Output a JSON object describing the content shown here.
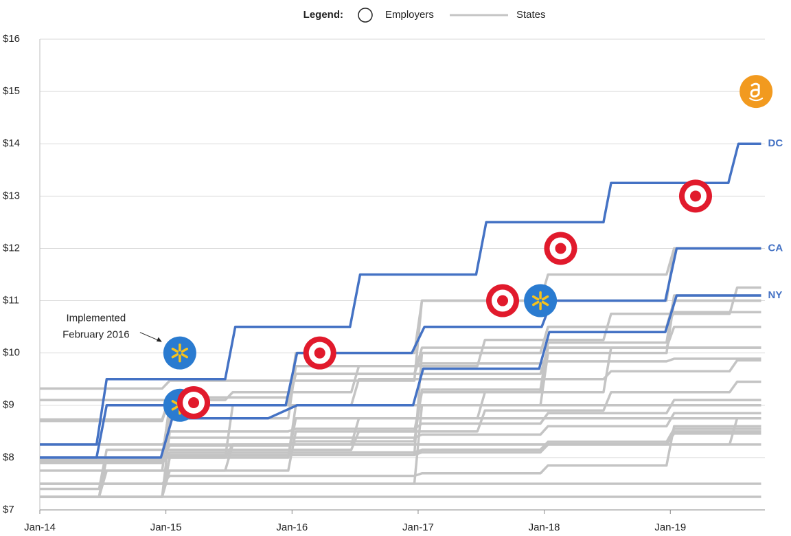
{
  "chart_data": {
    "type": "line",
    "legend": {
      "title": "Legend:",
      "employers": "Employers",
      "states": "States"
    },
    "xlim": [
      2014,
      2019.75
    ],
    "xticks": [
      {
        "value": 2014,
        "label": "Jan-14"
      },
      {
        "value": 2015,
        "label": "Jan-15"
      },
      {
        "value": 2016,
        "label": "Jan-16"
      },
      {
        "value": 2017,
        "label": "Jan-17"
      },
      {
        "value": 2018,
        "label": "Jan-18"
      },
      {
        "value": 2019,
        "label": "Jan-19"
      }
    ],
    "ylim": [
      7,
      16
    ],
    "yticks": [
      {
        "value": 7,
        "label": "$7"
      },
      {
        "value": 8,
        "label": "$8"
      },
      {
        "value": 9,
        "label": "$9"
      },
      {
        "value": 10,
        "label": "$10"
      },
      {
        "value": 11,
        "label": "$11"
      },
      {
        "value": 12,
        "label": "$12"
      },
      {
        "value": 13,
        "label": "$13"
      },
      {
        "value": 14,
        "label": "$14"
      },
      {
        "value": 15,
        "label": "$15"
      },
      {
        "value": 16,
        "label": "$16"
      }
    ],
    "grid": true,
    "state_color": "#c4c4c4",
    "series": [
      {
        "color": "#c4c4c4",
        "x": [
          2014,
          2019.72
        ],
        "values": [
          7.25,
          7.25
        ]
      },
      {
        "color": "#c4c4c4",
        "x": [
          2014,
          2019.72
        ],
        "values": [
          7.5,
          7.5
        ]
      },
      {
        "color": "#c4c4c4",
        "x": [
          2014,
          2019.72
        ],
        "values": [
          8.25,
          8.25
        ]
      },
      {
        "color": "#c4c4c4",
        "x": [
          2014,
          2014.97,
          2015.03,
          2015.97,
          2016.03,
          2016.97,
          2017.03,
          2017.97,
          2018.03,
          2018.97,
          2019.03,
          2019.72
        ],
        "values": [
          8.73,
          8.73,
          9.15,
          9.15,
          9.6,
          9.6,
          10.0,
          10.0,
          10.5,
          10.5,
          10.78,
          10.78
        ]
      },
      {
        "color": "#c4c4c4",
        "x": [
          2014,
          2014.97,
          2015.03,
          2015.97,
          2016.03,
          2016.97,
          2017.03,
          2017.97,
          2018.03,
          2018.97,
          2019.03,
          2019.72
        ],
        "values": [
          8.7,
          8.7,
          9.15,
          9.15,
          9.6,
          9.6,
          10.1,
          10.1,
          10.1,
          10.1,
          10.1,
          10.1
        ]
      },
      {
        "color": "#c4c4c4",
        "x": [
          2014,
          2014.97,
          2015.03,
          2015.97,
          2016.03,
          2016.97,
          2017.03,
          2017.97,
          2018.03,
          2018.97,
          2019.03,
          2019.72
        ],
        "values": [
          7.75,
          7.75,
          8.75,
          8.75,
          9.75,
          9.75,
          9.8,
          9.8,
          9.84,
          9.84,
          9.89,
          9.89
        ]
      },
      {
        "color": "#c4c4c4",
        "x": [
          2014,
          2014.97,
          2015.03,
          2015.97,
          2016.03,
          2016.97,
          2017.03,
          2017.97,
          2018.03,
          2018.97,
          2019.03,
          2019.72
        ],
        "values": [
          7.9,
          7.9,
          8.05,
          8.05,
          8.05,
          8.05,
          10.0,
          10.0,
          10.5,
          10.5,
          11.0,
          11.0
        ]
      },
      {
        "color": "#c4c4c4",
        "x": [
          2014,
          2014.97,
          2015.03,
          2015.97,
          2016.03,
          2016.97,
          2017.03,
          2017.97,
          2018.03,
          2018.97,
          2019.03,
          2019.72
        ],
        "values": [
          8.0,
          8.0,
          8.23,
          8.23,
          8.31,
          8.31,
          9.3,
          9.3,
          10.2,
          10.2,
          11.1,
          11.1
        ]
      },
      {
        "color": "#c4c4c4",
        "x": [
          2014,
          2014.97,
          2015.03,
          2015.97,
          2016.03,
          2016.97,
          2017.03,
          2017.97,
          2018.03,
          2018.97,
          2019.03,
          2019.72
        ],
        "values": [
          7.5,
          7.5,
          7.5,
          7.5,
          7.5,
          7.5,
          9.0,
          9.0,
          10.0,
          10.0,
          11.0,
          11.0
        ]
      },
      {
        "color": "#c4c4c4",
        "x": [
          2014,
          2014.97,
          2015.03,
          2015.97,
          2016.03,
          2016.97,
          2017.03,
          2017.97,
          2018.03,
          2018.97,
          2019.03,
          2019.72
        ],
        "values": [
          8.0,
          8.0,
          9.0,
          9.0,
          9.6,
          9.6,
          9.6,
          9.6,
          10.1,
          10.1,
          10.5,
          10.5
        ]
      },
      {
        "color": "#c4c4c4",
        "x": [
          2014,
          2014.97,
          2015.03,
          2015.97,
          2016.03,
          2016.97,
          2017.03,
          2017.97,
          2018.03,
          2018.97,
          2019.03,
          2019.72
        ],
        "values": [
          7.25,
          7.25,
          7.75,
          7.75,
          8.5,
          8.5,
          9.25,
          9.25,
          10.1,
          10.1,
          10.1,
          10.1
        ]
      },
      {
        "color": "#c4c4c4",
        "x": [
          2014,
          2014.97,
          2015.03,
          2015.97,
          2016.03,
          2016.97,
          2017.03,
          2017.97,
          2018.03,
          2018.97,
          2019.03,
          2019.72
        ],
        "values": [
          7.25,
          7.25,
          8.0,
          8.0,
          9.0,
          9.0,
          9.0,
          9.0,
          9.0,
          9.0,
          9.0,
          9.0
        ]
      },
      {
        "color": "#c4c4c4",
        "x": [
          2014,
          2014.97,
          2015.03,
          2015.97,
          2016.03,
          2016.97,
          2017.03,
          2017.97,
          2018.03,
          2018.97,
          2019.03,
          2019.72
        ],
        "values": [
          7.25,
          7.25,
          8.5,
          8.5,
          8.55,
          8.55,
          8.65,
          8.65,
          8.85,
          8.85,
          9.1,
          9.1
        ]
      },
      {
        "color": "#c4c4c4",
        "x": [
          2014,
          2014.97,
          2015.03,
          2015.97,
          2016.03,
          2016.97,
          2017.03,
          2017.97,
          2018.03,
          2018.97,
          2019.03,
          2019.72
        ],
        "values": [
          7.25,
          7.25,
          8.0,
          8.0,
          8.75,
          8.75,
          8.75,
          8.75,
          8.75,
          8.75,
          8.75,
          8.75
        ]
      },
      {
        "color": "#c4c4c4",
        "x": [
          2014,
          2014.97,
          2015.03,
          2015.97,
          2016.03,
          2016.97,
          2017.03,
          2017.97,
          2018.03,
          2018.97,
          2019.03,
          2019.72
        ],
        "values": [
          7.95,
          7.95,
          8.1,
          8.1,
          8.1,
          8.1,
          8.15,
          8.15,
          8.3,
          8.3,
          8.55,
          8.55
        ]
      },
      {
        "color": "#c4c4c4",
        "x": [
          2014,
          2014.97,
          2015.03,
          2015.97,
          2016.03,
          2016.97,
          2017.03,
          2017.97,
          2018.03,
          2018.97,
          2019.03,
          2019.72
        ],
        "values": [
          7.93,
          7.93,
          8.05,
          8.05,
          8.05,
          8.05,
          8.1,
          8.1,
          8.25,
          8.25,
          8.46,
          8.46
        ]
      },
      {
        "color": "#c4c4c4",
        "x": [
          2014,
          2014.97,
          2015.03,
          2015.97,
          2016.03,
          2016.97,
          2017.03,
          2017.97,
          2018.03,
          2018.97,
          2019.03,
          2019.72
        ],
        "values": [
          7.5,
          7.5,
          7.65,
          7.65,
          7.65,
          7.65,
          7.7,
          7.7,
          7.85,
          7.85,
          8.6,
          8.6
        ]
      },
      {
        "color": "#c4c4c4",
        "x": [
          2014,
          2014.97,
          2015.03,
          2015.97,
          2016.03,
          2016.97,
          2017.03,
          2017.97,
          2018.03,
          2018.97,
          2019.03,
          2019.72
        ],
        "values": [
          7.9,
          7.9,
          8.05,
          8.05,
          8.05,
          8.05,
          8.15,
          8.15,
          8.3,
          8.3,
          8.5,
          8.5
        ]
      },
      {
        "color": "#c4c4c4",
        "x": [
          2014,
          2014.97,
          2015.03,
          2015.97,
          2016.03,
          2016.97,
          2017.03,
          2017.97,
          2018.03,
          2018.97,
          2019.03,
          2019.72
        ],
        "values": [
          8.25,
          8.25,
          8.38,
          8.38,
          8.38,
          8.38,
          8.44,
          8.44,
          8.6,
          8.6,
          8.85,
          8.85
        ]
      },
      {
        "color": "#c4c4c4",
        "x": [
          2014,
          2014.97,
          2015.03,
          2015.97,
          2016.03,
          2016.97,
          2017.03,
          2017.97,
          2018.03,
          2018.97,
          2019.03,
          2019.72
        ],
        "values": [
          8.0,
          8.0,
          9.0,
          9.0,
          10.0,
          10.0,
          11.0,
          11.0,
          11.0,
          11.0,
          12.0,
          12.0
        ]
      },
      {
        "color": "#c4c4c4",
        "x": [
          2014,
          2014.97,
          2015.03,
          2015.97,
          2016.03,
          2016.97,
          2017.03,
          2017.97,
          2018.03,
          2018.97,
          2019.03,
          2019.72
        ],
        "values": [
          9.32,
          9.32,
          9.47,
          9.47,
          9.47,
          9.47,
          11.0,
          11.0,
          11.5,
          11.5,
          12.0,
          12.0
        ]
      },
      {
        "color": "#c4c4c4",
        "x": [
          2014,
          2014.47,
          2014.53,
          2015.47,
          2015.53,
          2016.47,
          2016.53,
          2017.47,
          2017.53,
          2018.47,
          2018.53,
          2019.47,
          2019.53,
          2019.72
        ],
        "values": [
          9.1,
          9.1,
          9.1,
          9.1,
          9.25,
          9.25,
          9.75,
          9.75,
          10.25,
          10.25,
          10.75,
          10.75,
          11.25,
          11.25
        ]
      },
      {
        "color": "#c4c4c4",
        "x": [
          2014,
          2014.47,
          2014.53,
          2015.47,
          2015.53,
          2016.47,
          2016.53,
          2017.47,
          2017.53,
          2018.47,
          2018.53,
          2019.47,
          2019.53,
          2019.72
        ],
        "values": [
          7.4,
          7.4,
          8.15,
          8.15,
          8.15,
          8.15,
          8.5,
          8.5,
          8.9,
          8.9,
          9.25,
          9.25,
          9.45,
          9.45
        ]
      },
      {
        "color": "#c4c4c4",
        "x": [
          2014,
          2014.47,
          2014.53,
          2015.47,
          2015.53,
          2016.47,
          2016.53,
          2017.47,
          2017.53,
          2018.47,
          2018.53,
          2019.47,
          2019.53,
          2019.72
        ],
        "values": [
          7.25,
          7.25,
          8.0,
          8.0,
          9.0,
          9.0,
          9.5,
          9.5,
          9.5,
          9.5,
          9.65,
          9.65,
          9.86,
          9.86
        ]
      },
      {
        "color": "#c4c4c4",
        "x": [
          2014,
          2014.47,
          2014.53,
          2015.47,
          2015.53,
          2016.47,
          2016.53,
          2017.47,
          2017.53,
          2018.47,
          2018.53,
          2019.47,
          2019.53,
          2019.72
        ],
        "values": [
          7.25,
          7.25,
          7.75,
          7.75,
          8.25,
          8.25,
          8.25,
          8.25,
          8.25,
          8.25,
          8.25,
          8.25,
          8.75,
          8.75
        ]
      },
      {
        "color": "#c4c4c4",
        "x": [
          2014,
          2014.47,
          2014.53,
          2015.47,
          2015.53,
          2016.47,
          2016.53,
          2017.47,
          2017.53,
          2018.47,
          2018.53,
          2019.47,
          2019.53,
          2019.72
        ],
        "values": [
          7.25,
          7.25,
          8.0,
          8.0,
          8.25,
          8.25,
          8.75,
          8.75,
          9.25,
          9.25,
          10.1,
          10.1,
          10.1,
          10.1
        ]
      },
      {
        "name": "DC",
        "color": "#4472c4",
        "x": [
          2014,
          2014.45,
          2014.53,
          2015.47,
          2015.55,
          2016.46,
          2016.54,
          2017.46,
          2017.54,
          2018.47,
          2018.53,
          2019.46,
          2019.54,
          2019.72
        ],
        "values": [
          8.25,
          8.25,
          9.5,
          9.5,
          10.5,
          10.5,
          11.5,
          11.5,
          12.5,
          12.5,
          13.25,
          13.25,
          14,
          14
        ]
      },
      {
        "name": "CA",
        "color": "#4472c4",
        "x": [
          2014,
          2014.45,
          2014.53,
          2015.95,
          2016.04,
          2016.95,
          2017.05,
          2017.98,
          2018.06,
          2018.96,
          2019.05,
          2019.72
        ],
        "values": [
          8,
          8,
          9,
          9,
          10,
          10,
          10.5,
          10.5,
          11,
          11,
          12,
          12
        ]
      },
      {
        "name": "NY",
        "color": "#4472c4",
        "x": [
          2014,
          2014.96,
          2015.05,
          2015.81,
          2016.04,
          2016.96,
          2017.04,
          2017.96,
          2018.04,
          2018.96,
          2019.05,
          2019.72
        ],
        "values": [
          8,
          8,
          8.75,
          8.75,
          9,
          9,
          9.7,
          9.7,
          10.4,
          10.4,
          11.1,
          11.1
        ]
      }
    ],
    "employers": [
      {
        "icon": "walmart",
        "x": 2015.11,
        "value": 10.0
      },
      {
        "icon": "walmart",
        "x": 2015.11,
        "value": 9.0
      },
      {
        "icon": "target",
        "x": 2015.22,
        "value": 9.05
      },
      {
        "icon": "target",
        "x": 2016.22,
        "value": 10.0
      },
      {
        "icon": "target",
        "x": 2017.67,
        "value": 11.0
      },
      {
        "icon": "walmart",
        "x": 2017.97,
        "value": 11.0
      },
      {
        "icon": "target",
        "x": 2018.13,
        "value": 12.0
      },
      {
        "icon": "target",
        "x": 2019.2,
        "value": 13.0
      },
      {
        "icon": "amazon",
        "x": 2019.68,
        "value": 15.0
      }
    ],
    "annotation": {
      "lines": [
        "Implemented",
        "February 2016"
      ],
      "target": 0
    }
  }
}
